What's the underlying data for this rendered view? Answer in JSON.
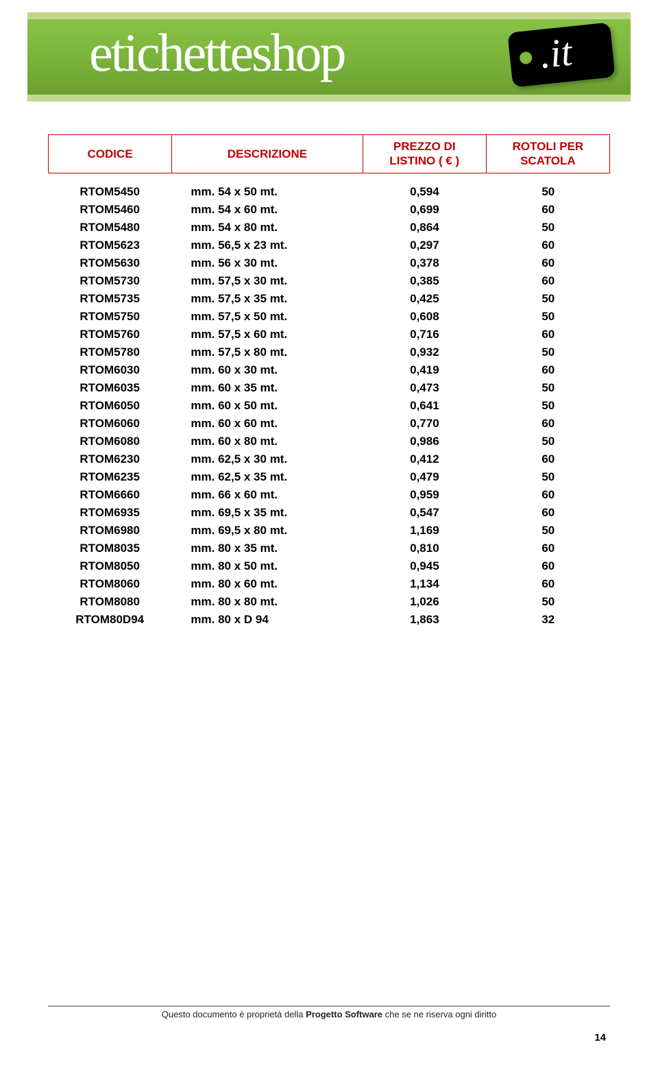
{
  "banner": {
    "brand_main": "etichetteshop",
    "brand_suffix": ".it",
    "bg_gradient_top": "#8bc34a",
    "bg_gradient_bottom": "#689c2e",
    "stripe_color": "#c0d98c",
    "tag_bg": "#000000",
    "text_color": "#ffffff"
  },
  "table": {
    "header_border_color": "#c00000",
    "header_text_color": "#c00000",
    "columns": {
      "code": "CODICE",
      "desc": "DESCRIZIONE",
      "price_l1": "PREZZO DI",
      "price_l2": "LISTINO ( € )",
      "rolls_l1": "ROTOLI PER",
      "rolls_l2": "SCATOLA"
    },
    "rows": [
      {
        "code": "RTOM5450",
        "desc": "mm. 54 x 50 mt.",
        "price": "0,594",
        "rolls": "50"
      },
      {
        "code": "RTOM5460",
        "desc": "mm. 54 x 60 mt.",
        "price": "0,699",
        "rolls": "60"
      },
      {
        "code": "RTOM5480",
        "desc": "mm. 54 x 80 mt.",
        "price": "0,864",
        "rolls": "50"
      },
      {
        "code": "RTOM5623",
        "desc": "mm. 56,5 x 23 mt.",
        "price": "0,297",
        "rolls": "60"
      },
      {
        "code": "RTOM5630",
        "desc": "mm. 56 x 30 mt.",
        "price": "0,378",
        "rolls": "60"
      },
      {
        "code": "RTOM5730",
        "desc": "mm. 57,5 x 30 mt.",
        "price": "0,385",
        "rolls": "60"
      },
      {
        "code": "RTOM5735",
        "desc": "mm. 57,5 x 35 mt.",
        "price": "0,425",
        "rolls": "50"
      },
      {
        "code": "RTOM5750",
        "desc": "mm. 57,5 x 50 mt.",
        "price": "0,608",
        "rolls": "50"
      },
      {
        "code": "RTOM5760",
        "desc": "mm. 57,5 x 60 mt.",
        "price": "0,716",
        "rolls": "60"
      },
      {
        "code": "RTOM5780",
        "desc": "mm. 57,5 x 80 mt.",
        "price": "0,932",
        "rolls": "50"
      },
      {
        "code": "RTOM6030",
        "desc": "mm. 60 x 30 mt.",
        "price": "0,419",
        "rolls": "60"
      },
      {
        "code": "RTOM6035",
        "desc": "mm. 60 x 35 mt.",
        "price": "0,473",
        "rolls": "50"
      },
      {
        "code": "RTOM6050",
        "desc": "mm. 60 x 50 mt.",
        "price": "0,641",
        "rolls": "50"
      },
      {
        "code": "RTOM6060",
        "desc": "mm. 60 x 60 mt.",
        "price": "0,770",
        "rolls": "60"
      },
      {
        "code": "RTOM6080",
        "desc": "mm. 60 x 80 mt.",
        "price": "0,986",
        "rolls": "50"
      },
      {
        "code": "RTOM6230",
        "desc": "mm. 62,5 x 30 mt.",
        "price": "0,412",
        "rolls": "60"
      },
      {
        "code": "RTOM6235",
        "desc": "mm. 62,5 x 35 mt.",
        "price": "0,479",
        "rolls": "50"
      },
      {
        "code": "RTOM6660",
        "desc": "mm. 66 x 60 mt.",
        "price": "0,959",
        "rolls": "60"
      },
      {
        "code": "RTOM6935",
        "desc": "mm. 69,5 x 35 mt.",
        "price": "0,547",
        "rolls": "60"
      },
      {
        "code": "RTOM6980",
        "desc": "mm. 69,5 x 80 mt.",
        "price": "1,169",
        "rolls": "50"
      },
      {
        "code": "RTOM8035",
        "desc": "mm. 80 x 35 mt.",
        "price": "0,810",
        "rolls": "60"
      },
      {
        "code": "RTOM8050",
        "desc": "mm. 80 x 50 mt.",
        "price": "0,945",
        "rolls": "60"
      },
      {
        "code": "RTOM8060",
        "desc": "mm. 80 x 60 mt.",
        "price": "1,134",
        "rolls": "60"
      },
      {
        "code": "RTOM8080",
        "desc": "mm. 80 x 80 mt.",
        "price": "1,026",
        "rolls": "50"
      },
      {
        "code": "RTOM80D94",
        "desc": "mm. 80 x D 94",
        "price": "1,863",
        "rolls": "32"
      }
    ]
  },
  "footer": {
    "text_prefix": "Questo documento è proprietà della ",
    "text_bold": "Progetto Software",
    "text_suffix": " che se ne riserva ogni diritto",
    "page_number": "14"
  }
}
